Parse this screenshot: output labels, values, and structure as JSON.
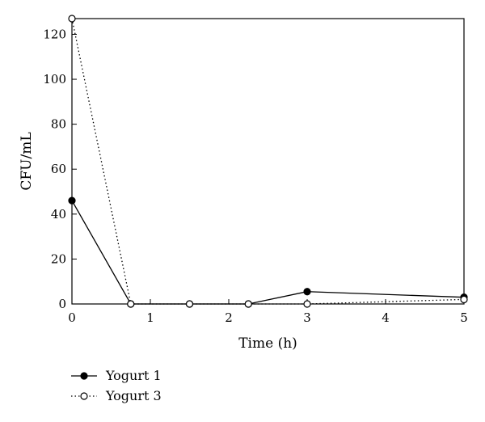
{
  "chart_data": {
    "type": "line",
    "title": "",
    "xlabel": "Time (h)",
    "ylabel": "CFU/mL",
    "xlim": [
      0,
      5
    ],
    "ylim": [
      0,
      127
    ],
    "x_ticks": [
      "0",
      "1",
      "2",
      "3",
      "4",
      "5"
    ],
    "y_ticks": [
      "0",
      "20",
      "40",
      "60",
      "80",
      "100",
      "120"
    ],
    "grid": false,
    "legend_position": "bottom-left",
    "series": [
      {
        "name": "Yogurt 1",
        "marker": "filled-circle",
        "line_style": "solid",
        "color": "#000000",
        "x": [
          0,
          0.75,
          1.5,
          2.25,
          3,
          5
        ],
        "y": [
          46,
          0,
          0,
          0,
          5.5,
          3
        ]
      },
      {
        "name": "Yogurt 3",
        "marker": "open-circle",
        "line_style": "dotted",
        "color": "#000000",
        "x": [
          0,
          0.75,
          1.5,
          2.25,
          3,
          5
        ],
        "y": [
          127,
          0,
          0,
          0,
          0,
          2
        ]
      }
    ]
  }
}
